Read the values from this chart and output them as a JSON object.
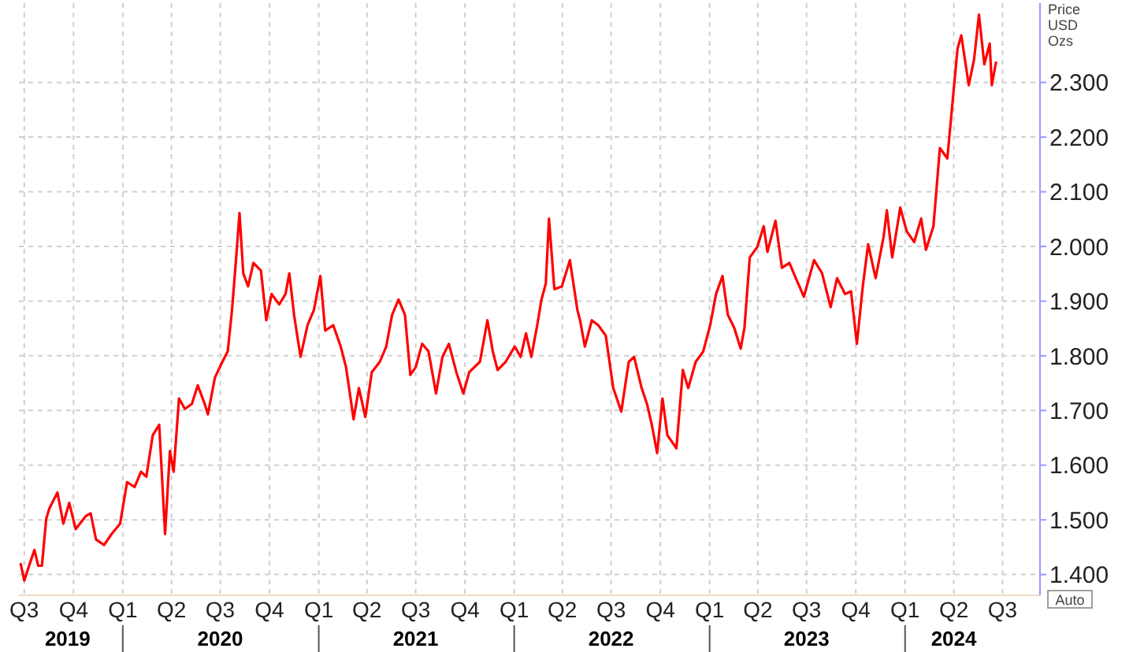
{
  "chart_data": {
    "type": "line",
    "y2label": "Price USD Ozs",
    "annotations": [
      "Auto"
    ],
    "x": [
      "2019-06-24",
      "2019-07-01",
      "2019-07-10",
      "2019-07-20",
      "2019-07-27",
      "2019-08-03",
      "2019-08-11",
      "2019-08-17",
      "2019-09-01",
      "2019-09-12",
      "2019-09-23",
      "2019-10-05",
      "2019-10-24",
      "2019-11-02",
      "2019-11-12",
      "2019-11-27",
      "2019-12-11",
      "2019-12-27",
      "2020-01-09",
      "2020-01-23",
      "2020-02-04",
      "2020-02-14",
      "2020-02-26",
      "2020-03-09",
      "2020-03-20",
      "2020-03-29",
      "2020-04-05",
      "2020-04-15",
      "2020-04-26",
      "2020-05-09",
      "2020-05-20",
      "2020-06-02",
      "2020-06-08",
      "2020-06-21",
      "2020-07-05",
      "2020-07-15",
      "2020-07-23",
      "2020-07-30",
      "2020-08-06",
      "2020-08-13",
      "2020-08-22",
      "2020-09-01",
      "2020-09-15",
      "2020-09-25",
      "2020-10-05",
      "2020-10-19",
      "2020-10-31",
      "2020-11-07",
      "2020-11-16",
      "2020-11-28",
      "2020-12-11",
      "2020-12-23",
      "2021-01-04",
      "2021-01-13",
      "2021-01-28",
      "2021-02-11",
      "2021-02-21",
      "2021-03-07",
      "2021-03-17",
      "2021-03-29",
      "2021-04-10",
      "2021-04-25",
      "2021-05-07",
      "2021-05-18",
      "2021-05-30",
      "2021-06-11",
      "2021-06-21",
      "2021-07-01",
      "2021-07-13",
      "2021-07-25",
      "2021-08-08",
      "2021-08-20",
      "2021-09-01",
      "2021-09-15",
      "2021-09-28",
      "2021-10-09",
      "2021-10-29",
      "2021-11-12",
      "2021-11-22",
      "2021-12-01",
      "2021-12-16",
      "2022-01-02",
      "2022-01-13",
      "2022-01-23",
      "2022-02-02",
      "2022-02-13",
      "2022-02-21",
      "2022-03-01",
      "2022-03-07",
      "2022-03-17",
      "2022-03-31",
      "2022-04-15",
      "2022-04-29",
      "2022-05-04",
      "2022-05-13",
      "2022-05-26",
      "2022-06-07",
      "2022-06-21",
      "2022-07-05",
      "2022-07-20",
      "2022-08-03",
      "2022-08-13",
      "2022-08-27",
      "2022-09-06",
      "2022-09-15",
      "2022-09-25",
      "2022-10-05",
      "2022-10-14",
      "2022-10-31",
      "2022-11-12",
      "2022-11-22",
      "2022-12-06",
      "2022-12-20",
      "2023-01-02",
      "2023-01-13",
      "2023-01-25",
      "2023-02-04",
      "2023-02-16",
      "2023-02-28",
      "2023-03-07",
      "2023-03-17",
      "2023-03-31",
      "2023-04-12",
      "2023-04-19",
      "2023-05-04",
      "2023-05-16",
      "2023-05-30",
      "2023-06-11",
      "2023-06-26",
      "2023-07-15",
      "2023-07-30",
      "2023-08-15",
      "2023-08-27",
      "2023-09-11",
      "2023-09-22",
      "2023-10-03",
      "2023-10-14",
      "2023-10-24",
      "2023-11-07",
      "2023-11-22",
      "2023-11-28",
      "2023-12-08",
      "2023-12-23",
      "2024-01-04",
      "2024-01-18",
      "2024-01-31",
      "2024-02-09",
      "2024-02-23",
      "2024-03-06",
      "2024-03-20",
      "2024-03-29",
      "2024-04-08",
      "2024-04-15",
      "2024-04-29",
      "2024-05-09",
      "2024-05-18",
      "2024-05-28",
      "2024-06-07",
      "2024-06-11",
      "2024-06-19"
    ],
    "series": [
      {
        "axis": "y2",
        "color": "#ff0000",
        "values": [
          1421,
          1389,
          1416,
          1445,
          1416,
          1416,
          1502,
          1521,
          1550,
          1493,
          1531,
          1483,
          1507,
          1512,
          1464,
          1454,
          1474,
          1493,
          1569,
          1560,
          1588,
          1579,
          1655,
          1674,
          1474,
          1626,
          1588,
          1722,
          1703,
          1712,
          1746,
          1712,
          1693,
          1760,
          1789,
          1808,
          1884,
          1970,
          2061,
          1951,
          1927,
          1970,
          1956,
          1865,
          1913,
          1894,
          1913,
          1951,
          1874,
          1798,
          1856,
          1884,
          1946,
          1846,
          1856,
          1817,
          1779,
          1684,
          1741,
          1688,
          1770,
          1789,
          1817,
          1875,
          1903,
          1875,
          1765,
          1779,
          1822,
          1808,
          1731,
          1798,
          1822,
          1770,
          1731,
          1770,
          1789,
          1865,
          1808,
          1774,
          1789,
          1817,
          1798,
          1841,
          1798,
          1856,
          1903,
          1932,
          2051,
          1922,
          1927,
          1975,
          1884,
          1865,
          1817,
          1865,
          1856,
          1837,
          1741,
          1698,
          1789,
          1798,
          1741,
          1712,
          1674,
          1622,
          1722,
          1655,
          1631,
          1774,
          1741,
          1789,
          1808,
          1856,
          1913,
          1946,
          1875,
          1851,
          1813,
          1851,
          1980,
          1999,
          2037,
          1990,
          2047,
          1961,
          1970,
          1942,
          1908,
          1975,
          1951,
          1889,
          1942,
          1913,
          1918,
          1822,
          1927,
          2004,
          1942,
          2018,
          2066,
          1980,
          2071,
          2028,
          2008,
          2051,
          1994,
          2037,
          2180,
          2161,
          2257,
          2362,
          2386,
          2295,
          2343,
          2424,
          2333,
          2371,
          2295,
          2338
        ]
      }
    ],
    "xlim": [
      "2019-06-21",
      "2024-09-09"
    ],
    "xticks": [
      {
        "value": "2019-07-01",
        "label": "Q3"
      },
      {
        "value": "2019-10-01",
        "label": "Q4"
      },
      {
        "value": "2020-01-01",
        "label": "Q1"
      },
      {
        "value": "2020-04-01",
        "label": "Q2"
      },
      {
        "value": "2020-07-01",
        "label": "Q3"
      },
      {
        "value": "2020-10-01",
        "label": "Q4"
      },
      {
        "value": "2021-01-01",
        "label": "Q1"
      },
      {
        "value": "2021-04-01",
        "label": "Q2"
      },
      {
        "value": "2021-07-01",
        "label": "Q3"
      },
      {
        "value": "2021-10-01",
        "label": "Q4"
      },
      {
        "value": "2022-01-01",
        "label": "Q1"
      },
      {
        "value": "2022-04-01",
        "label": "Q2"
      },
      {
        "value": "2022-07-01",
        "label": "Q3"
      },
      {
        "value": "2022-10-01",
        "label": "Q4"
      },
      {
        "value": "2023-01-01",
        "label": "Q1"
      },
      {
        "value": "2023-04-01",
        "label": "Q2"
      },
      {
        "value": "2023-07-01",
        "label": "Q3"
      },
      {
        "value": "2023-10-01",
        "label": "Q4"
      },
      {
        "value": "2024-01-01",
        "label": "Q1"
      },
      {
        "value": "2024-04-01",
        "label": "Q2"
      },
      {
        "value": "2024-07-01",
        "label": "Q3"
      }
    ],
    "x2lim": [
      "2019-06-21",
      "2024-09-09"
    ],
    "x2ticks": [
      {
        "value": "2019-09-20",
        "label": "2019"
      },
      {
        "value": "2020-01-01",
        "label": null
      },
      {
        "value": "2020-07-01",
        "label": "2020"
      },
      {
        "value": "2021-01-01",
        "label": null
      },
      {
        "value": "2021-07-01",
        "label": "2021"
      },
      {
        "value": "2022-01-01",
        "label": null
      },
      {
        "value": "2022-07-01",
        "label": "2022"
      },
      {
        "value": "2023-01-01",
        "label": null
      },
      {
        "value": "2023-07-01",
        "label": "2023"
      },
      {
        "value": "2024-01-01",
        "label": null
      },
      {
        "value": "2024-04-01",
        "label": "2024"
      }
    ],
    "y2lim": [
      1362,
      2445
    ],
    "y2ticks": [
      {
        "value": 1400,
        "label": "1.400"
      },
      {
        "value": 1500,
        "label": "1.500"
      },
      {
        "value": 1600,
        "label": "1.600"
      },
      {
        "value": 1700,
        "label": "1.700"
      },
      {
        "value": 1800,
        "label": "1.800"
      },
      {
        "value": 1900,
        "label": "1.900"
      },
      {
        "value": 2000,
        "label": "2.000"
      },
      {
        "value": 2100,
        "label": "2.100"
      },
      {
        "value": 2200,
        "label": "2.200"
      },
      {
        "value": 2300,
        "label": "2.300"
      }
    ],
    "grid": true,
    "marker": "none",
    "line_style": "solid"
  }
}
